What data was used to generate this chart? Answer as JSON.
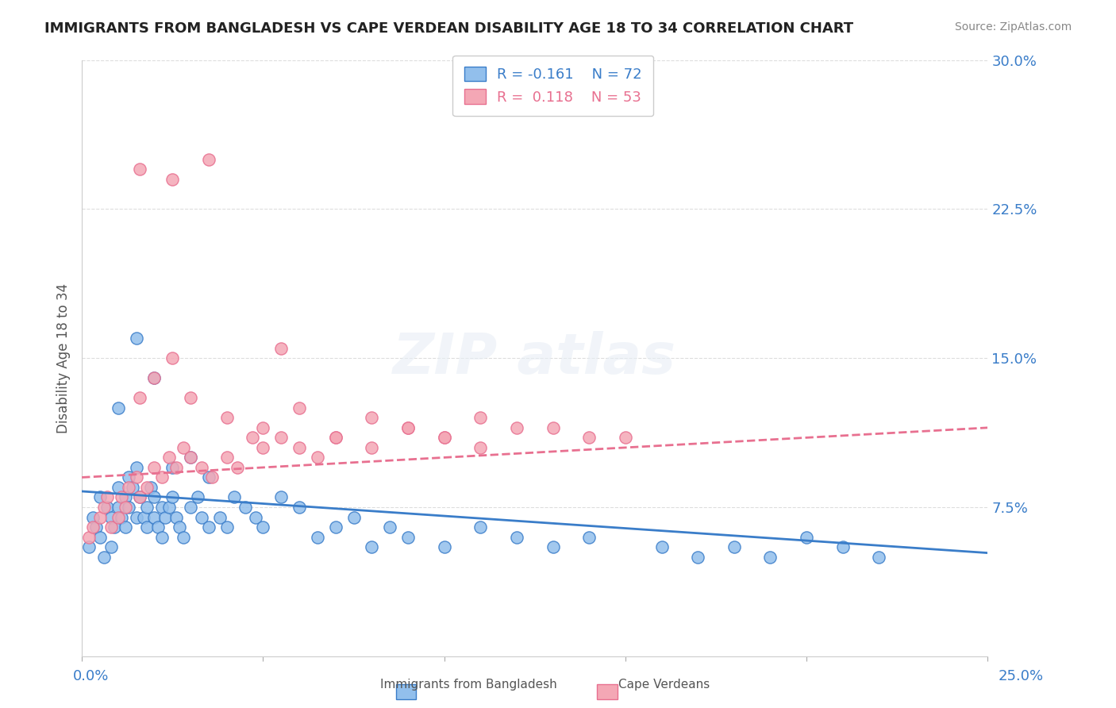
{
  "title": "IMMIGRANTS FROM BANGLADESH VS CAPE VERDEAN DISABILITY AGE 18 TO 34 CORRELATION CHART",
  "source": "Source: ZipAtlas.com",
  "ylabel": "Disability Age 18 to 34",
  "xlim": [
    0.0,
    0.25
  ],
  "ylim": [
    0.0,
    0.3
  ],
  "legend_r_bangladesh": "-0.161",
  "legend_n_bangladesh": "72",
  "legend_r_capeverdean": "0.118",
  "legend_n_capeverdean": "53",
  "color_bangladesh": "#92BFEC",
  "color_capeverdean": "#F4A7B5",
  "line_color_bangladesh": "#3A7DC9",
  "line_color_capeverdean": "#E87090",
  "bangladesh_x": [
    0.002,
    0.003,
    0.004,
    0.005,
    0.005,
    0.006,
    0.007,
    0.008,
    0.008,
    0.009,
    0.01,
    0.01,
    0.011,
    0.012,
    0.012,
    0.013,
    0.013,
    0.014,
    0.015,
    0.015,
    0.016,
    0.017,
    0.018,
    0.018,
    0.019,
    0.02,
    0.02,
    0.021,
    0.022,
    0.022,
    0.023,
    0.024,
    0.025,
    0.026,
    0.027,
    0.028,
    0.03,
    0.032,
    0.033,
    0.035,
    0.038,
    0.04,
    0.042,
    0.045,
    0.048,
    0.05,
    0.055,
    0.06,
    0.065,
    0.07,
    0.075,
    0.08,
    0.085,
    0.09,
    0.1,
    0.11,
    0.12,
    0.13,
    0.14,
    0.16,
    0.17,
    0.18,
    0.19,
    0.2,
    0.21,
    0.22,
    0.01,
    0.015,
    0.02,
    0.025,
    0.03,
    0.035
  ],
  "bangladesh_y": [
    0.055,
    0.07,
    0.065,
    0.06,
    0.08,
    0.05,
    0.075,
    0.07,
    0.055,
    0.065,
    0.085,
    0.075,
    0.07,
    0.08,
    0.065,
    0.09,
    0.075,
    0.085,
    0.07,
    0.095,
    0.08,
    0.07,
    0.065,
    0.075,
    0.085,
    0.08,
    0.07,
    0.065,
    0.06,
    0.075,
    0.07,
    0.075,
    0.08,
    0.07,
    0.065,
    0.06,
    0.075,
    0.08,
    0.07,
    0.065,
    0.07,
    0.065,
    0.08,
    0.075,
    0.07,
    0.065,
    0.08,
    0.075,
    0.06,
    0.065,
    0.07,
    0.055,
    0.065,
    0.06,
    0.055,
    0.065,
    0.06,
    0.055,
    0.06,
    0.055,
    0.05,
    0.055,
    0.05,
    0.06,
    0.055,
    0.05,
    0.125,
    0.16,
    0.14,
    0.095,
    0.1,
    0.09
  ],
  "capeverdean_x": [
    0.002,
    0.003,
    0.005,
    0.006,
    0.007,
    0.008,
    0.01,
    0.011,
    0.012,
    0.013,
    0.015,
    0.016,
    0.018,
    0.02,
    0.022,
    0.024,
    0.026,
    0.028,
    0.03,
    0.033,
    0.036,
    0.04,
    0.043,
    0.047,
    0.05,
    0.055,
    0.06,
    0.065,
    0.07,
    0.08,
    0.09,
    0.1,
    0.11,
    0.13,
    0.15,
    0.016,
    0.02,
    0.025,
    0.03,
    0.04,
    0.05,
    0.06,
    0.07,
    0.08,
    0.09,
    0.1,
    0.11,
    0.12,
    0.14,
    0.016,
    0.025,
    0.035,
    0.055
  ],
  "capeverdean_y": [
    0.06,
    0.065,
    0.07,
    0.075,
    0.08,
    0.065,
    0.07,
    0.08,
    0.075,
    0.085,
    0.09,
    0.08,
    0.085,
    0.095,
    0.09,
    0.1,
    0.095,
    0.105,
    0.1,
    0.095,
    0.09,
    0.1,
    0.095,
    0.11,
    0.105,
    0.11,
    0.105,
    0.1,
    0.11,
    0.105,
    0.115,
    0.11,
    0.12,
    0.115,
    0.11,
    0.13,
    0.14,
    0.15,
    0.13,
    0.12,
    0.115,
    0.125,
    0.11,
    0.12,
    0.115,
    0.11,
    0.105,
    0.115,
    0.11,
    0.245,
    0.24,
    0.25,
    0.155
  ],
  "background_color": "#FFFFFF",
  "grid_color": "#DDDDDD",
  "text_color": "#3A7DC9",
  "bang_trend_y0": 0.083,
  "bang_trend_y1": 0.052,
  "cape_trend_y0": 0.09,
  "cape_trend_y1": 0.115
}
